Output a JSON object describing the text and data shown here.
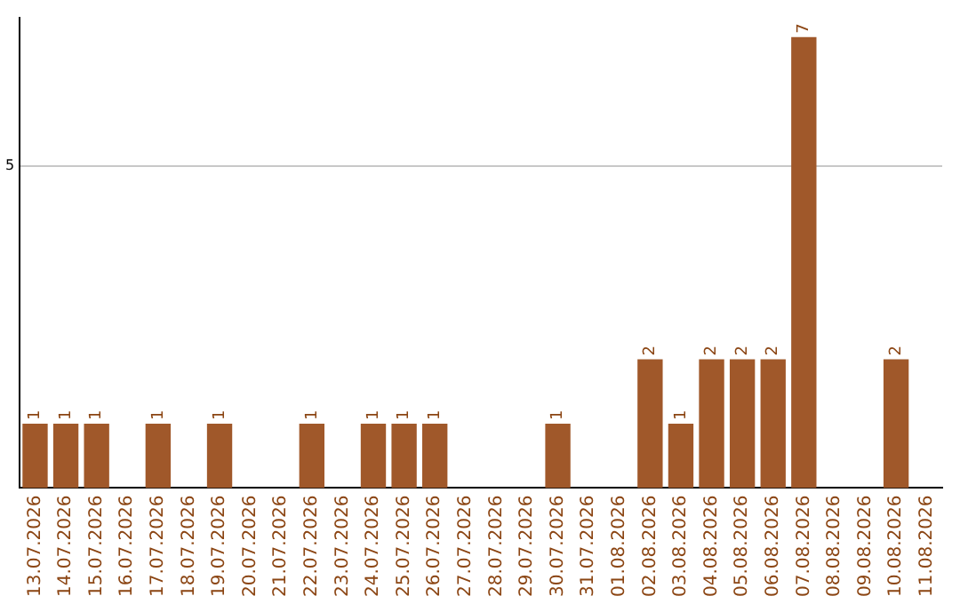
{
  "chart_data": {
    "type": "bar",
    "categories": [
      "13.07.2026",
      "14.07.2026",
      "15.07.2026",
      "16.07.2026",
      "17.07.2026",
      "18.07.2026",
      "19.07.2026",
      "20.07.2026",
      "21.07.2026",
      "22.07.2026",
      "23.07.2026",
      "24.07.2026",
      "25.07.2026",
      "26.07.2026",
      "27.07.2026",
      "28.07.2026",
      "29.07.2026",
      "30.07.2026",
      "31.07.2026",
      "01.08.2026",
      "02.08.2026",
      "03.08.2026",
      "04.08.2026",
      "05.08.2026",
      "06.08.2026",
      "07.08.2026",
      "08.08.2026",
      "09.08.2026",
      "10.08.2026",
      "11.08.2026"
    ],
    "values": [
      1,
      1,
      1,
      0,
      1,
      0,
      1,
      0,
      0,
      1,
      0,
      1,
      1,
      1,
      0,
      0,
      0,
      1,
      0,
      0,
      2,
      1,
      2,
      2,
      2,
      7,
      0,
      0,
      2,
      0
    ],
    "value_labels": [
      "1",
      "1",
      "1",
      null,
      "1",
      null,
      "1",
      null,
      null,
      "1",
      null,
      "1",
      "1",
      "1",
      null,
      null,
      null,
      "1",
      null,
      null,
      "2",
      "1",
      "2",
      "2",
      "2",
      "7",
      null,
      null,
      "2",
      null
    ],
    "color": "#a0582a",
    "ylim": [
      0,
      7.3
    ],
    "yticks": [
      5
    ],
    "grid": "y",
    "legend": false
  }
}
